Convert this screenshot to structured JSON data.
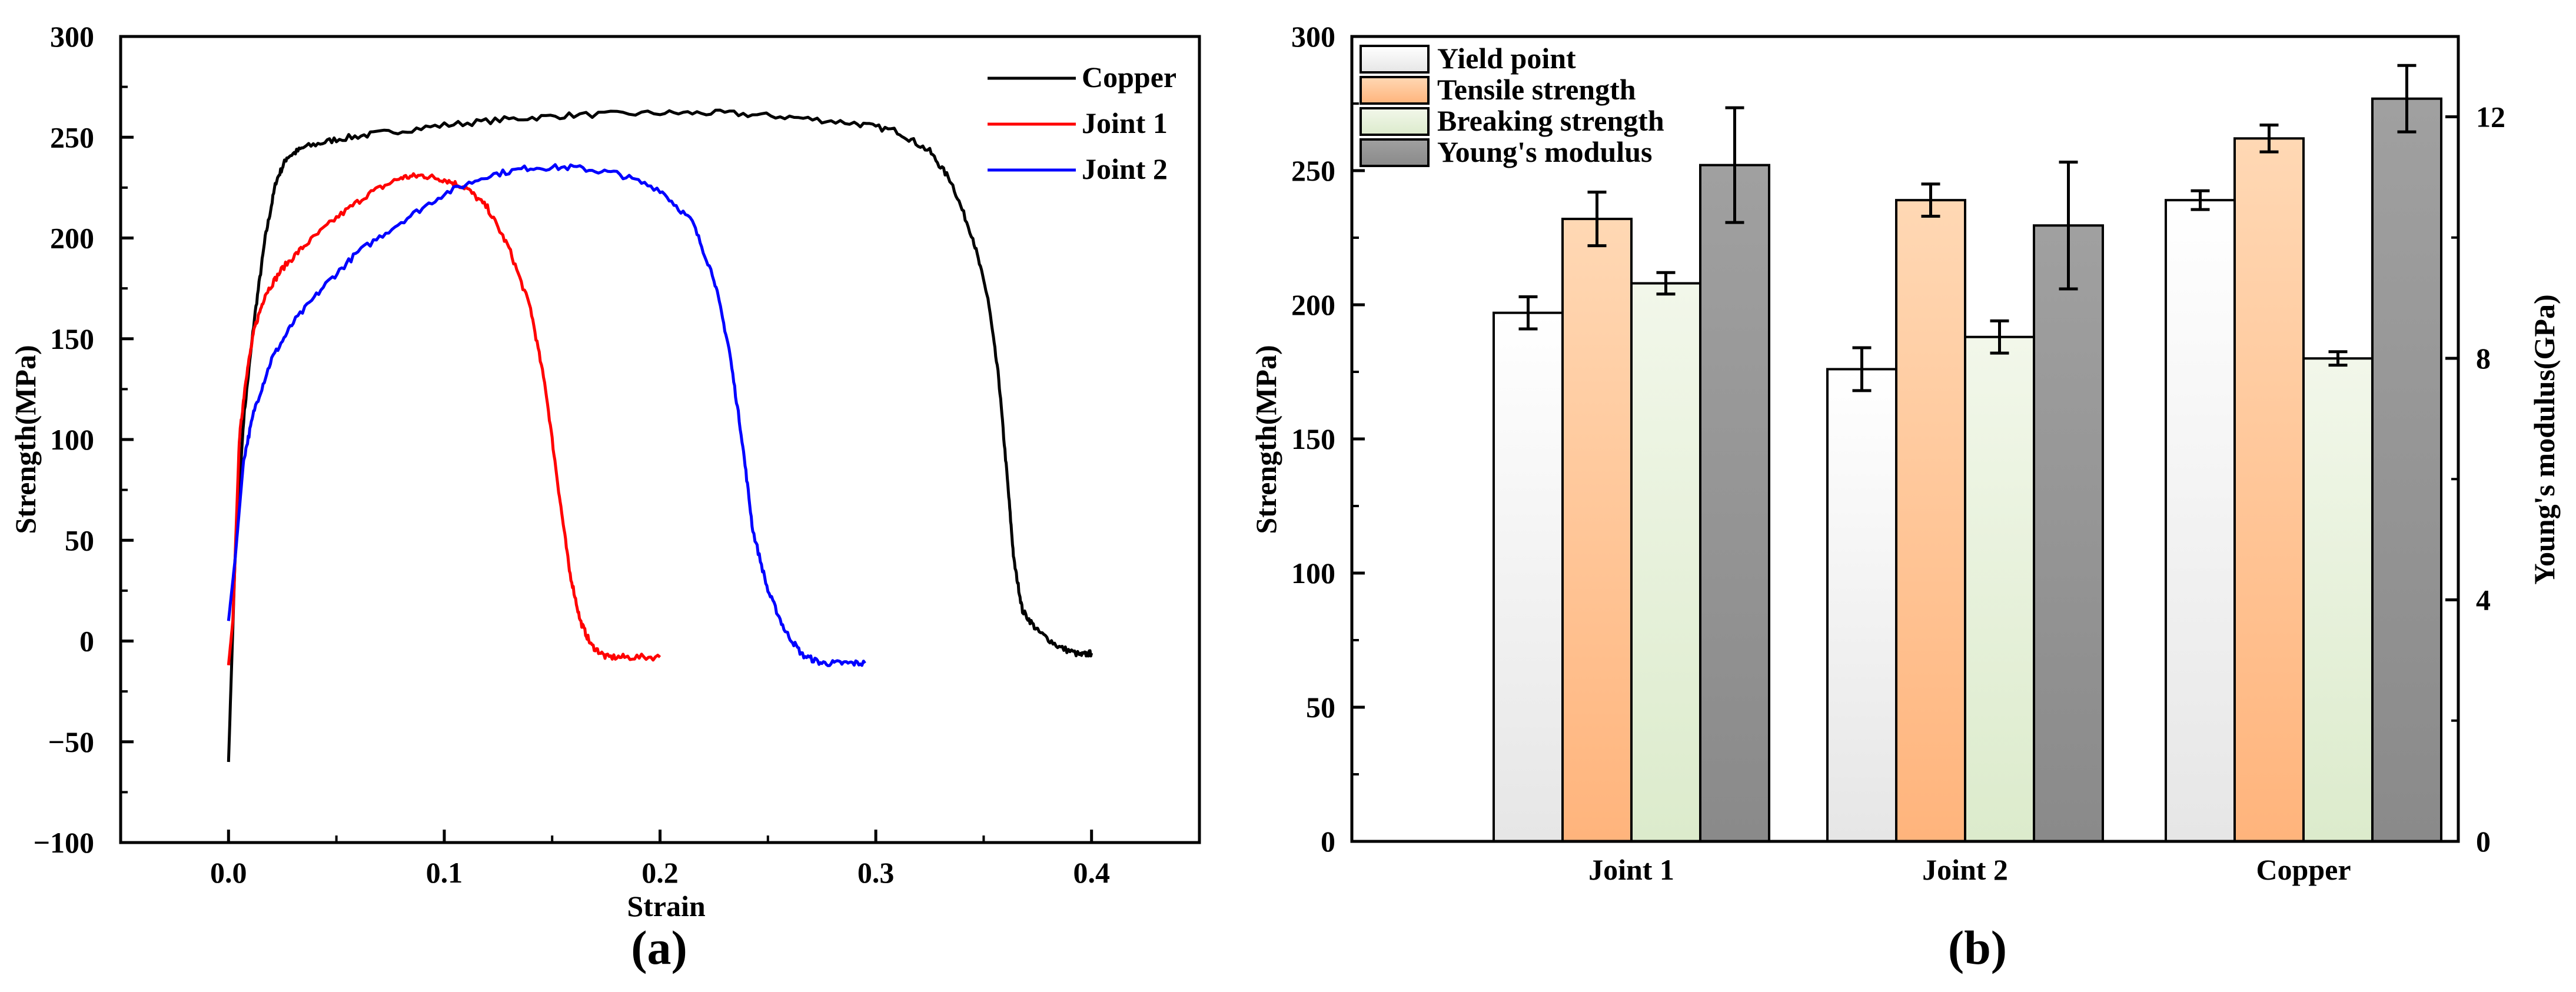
{
  "chart_data": [
    {
      "type": "line",
      "panel_label": "(a)",
      "xlabel": "Strain",
      "ylabel": "Strength(MPa)",
      "xlim": [
        -0.05,
        0.45
      ],
      "ylim": [
        -100,
        300
      ],
      "x_ticks": [
        0.0,
        0.1,
        0.2,
        0.3,
        0.4
      ],
      "x_tick_labels": [
        "0.0",
        "0.1",
        "0.2",
        "0.3",
        "0.4"
      ],
      "y_ticks": [
        -100,
        -50,
        0,
        50,
        100,
        150,
        200,
        250,
        300
      ],
      "y_tick_labels": [
        "-100",
        "-50",
        "0",
        "50",
        "100",
        "150",
        "200",
        "250",
        "300"
      ],
      "legend_position": "top-right",
      "grid": false,
      "series": [
        {
          "name": "Copper",
          "color": "#000000",
          "points": [
            [
              0.0,
              -60
            ],
            [
              0.003,
              40
            ],
            [
              0.007,
              110
            ],
            [
              0.012,
              160
            ],
            [
              0.017,
              200
            ],
            [
              0.022,
              228
            ],
            [
              0.027,
              240
            ],
            [
              0.035,
              245
            ],
            [
              0.05,
              249
            ],
            [
              0.07,
              252
            ],
            [
              0.1,
              256
            ],
            [
              0.13,
              259
            ],
            [
              0.16,
              261
            ],
            [
              0.2,
              262
            ],
            [
              0.23,
              262
            ],
            [
              0.26,
              260
            ],
            [
              0.29,
              257
            ],
            [
              0.31,
              253
            ],
            [
              0.325,
              243
            ],
            [
              0.335,
              228
            ],
            [
              0.345,
              200
            ],
            [
              0.352,
              170
            ],
            [
              0.357,
              130
            ],
            [
              0.361,
              80
            ],
            [
              0.364,
              40
            ],
            [
              0.368,
              15
            ],
            [
              0.375,
              5
            ],
            [
              0.385,
              -3
            ],
            [
              0.395,
              -7
            ],
            [
              0.4,
              -6
            ]
          ]
        },
        {
          "name": "Joint 1",
          "color": "#ff0000",
          "points": [
            [
              0.0,
              -12
            ],
            [
              0.002,
              10
            ],
            [
              0.005,
              100
            ],
            [
              0.008,
              130
            ],
            [
              0.012,
              155
            ],
            [
              0.017,
              172
            ],
            [
              0.025,
              185
            ],
            [
              0.035,
              196
            ],
            [
              0.05,
              210
            ],
            [
              0.065,
              222
            ],
            [
              0.08,
              230
            ],
            [
              0.09,
              231
            ],
            [
              0.1,
              229
            ],
            [
              0.11,
              225
            ],
            [
              0.12,
              215
            ],
            [
              0.13,
              195
            ],
            [
              0.14,
              165
            ],
            [
              0.147,
              125
            ],
            [
              0.153,
              75
            ],
            [
              0.158,
              35
            ],
            [
              0.163,
              10
            ],
            [
              0.168,
              -2
            ],
            [
              0.175,
              -8
            ],
            [
              0.185,
              -8
            ],
            [
              0.2,
              -8
            ]
          ]
        },
        {
          "name": "Joint 2",
          "color": "#0000ff",
          "points": [
            [
              0.0,
              10
            ],
            [
              0.003,
              40
            ],
            [
              0.007,
              90
            ],
            [
              0.012,
              115
            ],
            [
              0.02,
              140
            ],
            [
              0.03,
              158
            ],
            [
              0.045,
              177
            ],
            [
              0.06,
              193
            ],
            [
              0.08,
              208
            ],
            [
              0.1,
              222
            ],
            [
              0.12,
              231
            ],
            [
              0.14,
              235
            ],
            [
              0.16,
              235
            ],
            [
              0.18,
              232
            ],
            [
              0.2,
              224
            ],
            [
              0.215,
              208
            ],
            [
              0.225,
              180
            ],
            [
              0.232,
              145
            ],
            [
              0.238,
              100
            ],
            [
              0.243,
              55
            ],
            [
              0.25,
              25
            ],
            [
              0.258,
              5
            ],
            [
              0.266,
              -7
            ],
            [
              0.275,
              -11
            ],
            [
              0.285,
              -11
            ],
            [
              0.295,
              -11
            ]
          ]
        }
      ]
    },
    {
      "type": "bar",
      "panel_label": "(b)",
      "categories": [
        "Joint 1",
        "Joint 2",
        "Copper"
      ],
      "ylabel": "Strength(MPa)",
      "y2label": "Young's modulus(GPa)",
      "ylim": [
        0,
        300
      ],
      "y2lim": [
        0,
        13.33
      ],
      "y_ticks": [
        0,
        50,
        100,
        150,
        200,
        250,
        300
      ],
      "y_tick_labels": [
        "0",
        "50",
        "100",
        "150",
        "200",
        "250",
        "300"
      ],
      "y2_ticks": [
        0,
        4,
        8,
        12
      ],
      "y2_tick_labels": [
        "0",
        "4",
        "8",
        "12"
      ],
      "legend_position": "top-left",
      "grid": false,
      "series": [
        {
          "name": "Yield point",
          "axis": "left",
          "fill_top": "#ffffff",
          "fill_bottom": "#e6e6e6",
          "values": [
            197,
            176,
            239
          ],
          "errors": [
            6,
            8,
            3.5
          ]
        },
        {
          "name": "Tensile strength",
          "axis": "left",
          "fill_top": "#ffd8b4",
          "fill_bottom": "#ffb47c",
          "values": [
            232,
            239,
            262
          ],
          "errors": [
            10,
            6,
            5
          ]
        },
        {
          "name": "Breaking strength",
          "axis": "left",
          "fill_top": "#f2f7ea",
          "fill_bottom": "#dcebcc",
          "values": [
            208,
            188,
            180
          ],
          "errors": [
            4,
            6,
            2.5
          ]
        },
        {
          "name": "Young's modulus",
          "axis": "right",
          "fill_top": "#a0a0a0",
          "fill_bottom": "#8a8a8a",
          "values": [
            11.2,
            10.2,
            12.3
          ],
          "errors": [
            0.95,
            1.05,
            0.55
          ]
        }
      ]
    }
  ]
}
